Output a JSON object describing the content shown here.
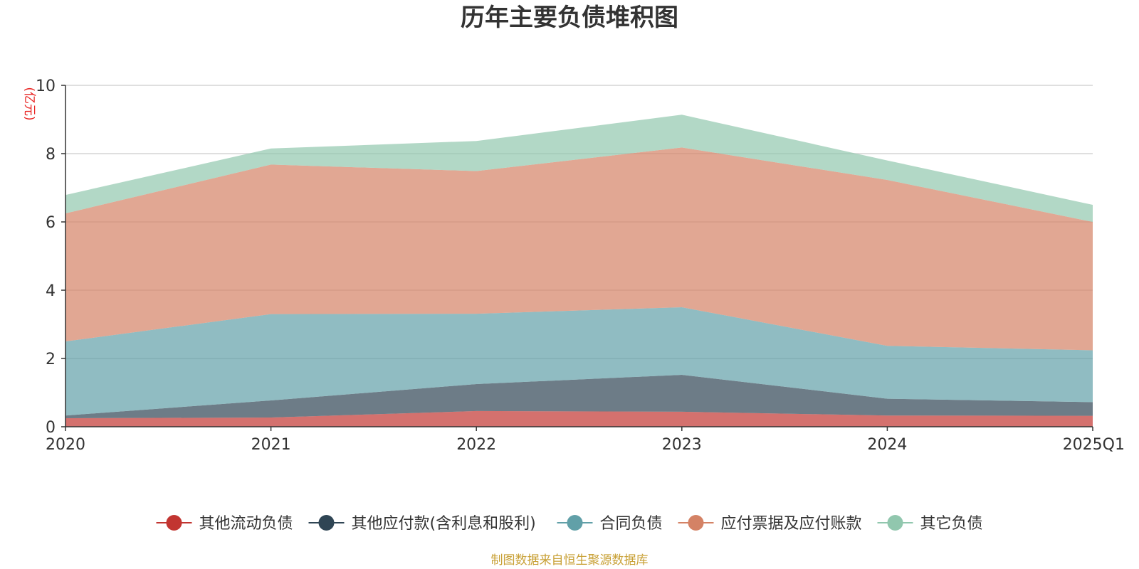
{
  "chart_data": {
    "type": "area",
    "stacked": true,
    "title": "历年主要负债堆积图",
    "unit_label": "(亿元)",
    "categories": [
      "2020",
      "2021",
      "2022",
      "2023",
      "2024",
      "2025Q1"
    ],
    "y_ticks": [
      "0",
      "2",
      "4",
      "6",
      "8",
      "10"
    ],
    "ylim": [
      0,
      10
    ],
    "grid": true,
    "legend_position": "bottom",
    "series": [
      {
        "name": "其他流动负债",
        "color": "#c23531",
        "values": [
          0.25,
          0.27,
          0.46,
          0.44,
          0.33,
          0.32
        ]
      },
      {
        "name": "其他应付款(含利息和股利)",
        "color": "#2f4554",
        "values": [
          0.08,
          0.5,
          0.79,
          1.08,
          0.49,
          0.4
        ]
      },
      {
        "name": "合同负债",
        "color": "#61a0a8",
        "values": [
          2.17,
          2.53,
          2.06,
          1.98,
          1.55,
          1.52
        ]
      },
      {
        "name": "应付票据及应付账款",
        "color": "#d48265",
        "values": [
          3.75,
          4.38,
          4.18,
          4.68,
          4.86,
          3.76
        ]
      },
      {
        "name": "其它负债",
        "color": "#91c7ae",
        "values": [
          0.54,
          0.47,
          0.88,
          0.96,
          0.57,
          0.5
        ]
      }
    ],
    "source": "制图数据来自恒生聚源数据库"
  }
}
